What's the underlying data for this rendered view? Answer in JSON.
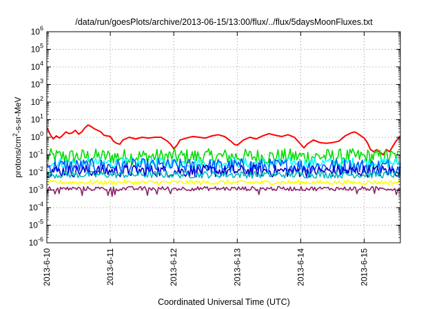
{
  "chart_data": {
    "type": "line",
    "title": "/data/run/goesPlots/archive/2013-06-15/13:00/flux/../flux/5daysMoonFluxes.txt",
    "xlabel": "Coordinated Universal Time (UTC)",
    "ylabel_base": "protons/cm",
    "ylabel_sup": "2",
    "ylabel_rest": "-s-sr-MeV",
    "yscale": "log",
    "ylim": [
      1e-06,
      1000000.0
    ],
    "y_ticks": [
      {
        "value": 1e-06,
        "base": "10",
        "exp": "-6"
      },
      {
        "value": 1e-05,
        "base": "10",
        "exp": "-5"
      },
      {
        "value": 0.0001,
        "base": "10",
        "exp": "-4"
      },
      {
        "value": 0.001,
        "base": "10",
        "exp": "-3"
      },
      {
        "value": 0.01,
        "base": "10",
        "exp": "-2"
      },
      {
        "value": 0.1,
        "base": "10",
        "exp": "-1"
      },
      {
        "value": 1,
        "base": "10",
        "exp": "0"
      },
      {
        "value": 10,
        "base": "10",
        "exp": "1"
      },
      {
        "value": 100,
        "base": "10",
        "exp": "2"
      },
      {
        "value": 1000,
        "base": "10",
        "exp": "3"
      },
      {
        "value": 10000,
        "base": "10",
        "exp": "4"
      },
      {
        "value": 100000,
        "base": "10",
        "exp": "5"
      },
      {
        "value": 1000000,
        "base": "10",
        "exp": "6"
      }
    ],
    "x_ticks": [
      {
        "value": 0,
        "label": "2013-6-10"
      },
      {
        "value": 1,
        "label": "2013-6-11"
      },
      {
        "value": 2,
        "label": "2013-6-12"
      },
      {
        "value": 3,
        "label": "2013-6-13"
      },
      {
        "value": 4,
        "label": "2013-6-14"
      },
      {
        "value": 5,
        "label": "2013-6-15"
      }
    ],
    "xlim": [
      0,
      5.57
    ],
    "grid": true,
    "series": [
      {
        "color": "#ff0000",
        "x": [
          0,
          0.05,
          0.1,
          0.15,
          0.2,
          0.25,
          0.3,
          0.35,
          0.4,
          0.45,
          0.5,
          0.55,
          0.6,
          0.65,
          0.7,
          0.75,
          0.8,
          0.85,
          0.9,
          0.95,
          1.0,
          1.05,
          1.1,
          1.15,
          1.2,
          1.3,
          1.4,
          1.5,
          1.6,
          1.7,
          1.8,
          1.9,
          1.95,
          2.0,
          2.05,
          2.1,
          2.2,
          2.3,
          2.4,
          2.5,
          2.6,
          2.7,
          2.8,
          2.9,
          2.95,
          3.0,
          3.05,
          3.1,
          3.2,
          3.3,
          3.4,
          3.5,
          3.6,
          3.7,
          3.8,
          3.9,
          4.0,
          4.05,
          4.1,
          4.2,
          4.3,
          4.4,
          4.5,
          4.6,
          4.7,
          4.8,
          4.85,
          4.9,
          5.0,
          5.05,
          5.1,
          5.15,
          5.2,
          5.3,
          5.35,
          5.4,
          5.45,
          5.5,
          5.57
        ],
        "y": [
          3.5,
          1.5,
          0.8,
          1.2,
          0.9,
          1.3,
          2.0,
          1.6,
          1.8,
          2.5,
          1.5,
          2.0,
          3.5,
          5.0,
          4.0,
          3.0,
          2.5,
          2.0,
          1.3,
          1.2,
          1.1,
          0.6,
          0.45,
          0.4,
          0.7,
          1.0,
          0.8,
          1.0,
          0.9,
          1.0,
          1.0,
          0.6,
          0.4,
          0.22,
          0.35,
          0.7,
          0.9,
          1.1,
          1.0,
          0.9,
          1.2,
          1.4,
          1.1,
          0.6,
          0.4,
          0.35,
          0.5,
          0.7,
          1.0,
          0.8,
          1.2,
          1.6,
          1.3,
          1.1,
          1.4,
          1.0,
          0.4,
          0.25,
          0.4,
          0.7,
          0.5,
          0.45,
          0.5,
          0.6,
          1.2,
          1.8,
          2.0,
          1.6,
          0.9,
          0.5,
          0.2,
          0.15,
          0.2,
          0.1,
          0.2,
          0.15,
          0.3,
          0.6,
          1.2
        ]
      },
      {
        "color": "#00dd00",
        "level": 0.08,
        "spread": 0.45
      },
      {
        "color": "#00ffff",
        "level": 0.035,
        "spread": 0.3
      },
      {
        "color": "#0055ff",
        "level": 0.022,
        "spread": 0.45
      },
      {
        "color": "#0000cc",
        "level": 0.012,
        "spread": 0.35
      },
      {
        "color": "#00bbbb",
        "level": 0.0075,
        "spread": 0.2
      },
      {
        "color": "#ffff00",
        "level": 0.0027,
        "spread": 0.12
      },
      {
        "color": "#882266",
        "level": 0.0012,
        "spread": 0.12
      }
    ]
  }
}
